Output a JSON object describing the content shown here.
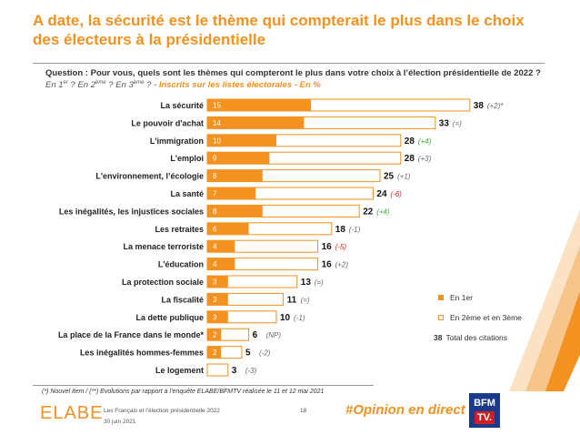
{
  "title": "A date, la sécurité est le thème qui compterait le plus dans le choix des électeurs à la présidentielle",
  "question": "Question : Pour vous, quels sont les thèmes qui compteront le plus dans votre choix à l’élection présidentielle de 2022 ?",
  "subquestion": {
    "ranks_text_1": "En 1",
    "sup1": "er",
    "ranks_text_2": " ? En 2",
    "sup2": "ème",
    "ranks_text_3": " ? En 3",
    "sup3": "ème",
    "ranks_text_4": " ? - ",
    "scope": "Inscrits sur les listes électorales - En %"
  },
  "legend": {
    "first": "En 1er",
    "others": "En 2ème et en 3ème",
    "total_value": "38",
    "total_label": "Total des citations"
  },
  "footnote": "(*) Nouvel item / (**) Evolutions par rapport à l’enquête ELABE/BFMTV réalisée le 11 et 12 mai 2021",
  "footer": {
    "logo": "ELABE",
    "source": "Les Français et l’élection présidentielle 2022",
    "date": "30 juin 2021",
    "page": "18",
    "hashtag": "#Opinion en direct",
    "bfm_line1": "BFM",
    "bfm_line2": "TV."
  },
  "colors": {
    "accent": "#f39220",
    "positive": "#3aa935",
    "negative": "#e2231a",
    "neutral": "#666666"
  },
  "chart_data": {
    "type": "bar",
    "orientation": "horizontal",
    "stacked": true,
    "categories": [
      "La sécurité",
      "Le pouvoir d'achat",
      "L'immigration",
      "L'emploi",
      "L'environnement, l’écologie",
      "La santé",
      "Les inégalités, les injustices sociales",
      "Les retraites",
      "La menace terroriste",
      "L'éducation",
      "La protection sociale",
      "La fiscalité",
      "La dette publique",
      "La place de la France dans le monde*",
      "Les inégalités hommes-femmes",
      "Le logement"
    ],
    "series": [
      {
        "name": "En 1er",
        "values": [
          15,
          14,
          10,
          9,
          8,
          7,
          8,
          6,
          4,
          4,
          3,
          3,
          3,
          2,
          2,
          null
        ]
      },
      {
        "name": "En 2ème et en 3ème",
        "values": [
          23,
          19,
          18,
          19,
          17,
          17,
          14,
          12,
          12,
          12,
          10,
          8,
          7,
          4,
          3,
          3
        ]
      }
    ],
    "totals": [
      38,
      33,
      28,
      28,
      25,
      24,
      22,
      18,
      16,
      16,
      13,
      11,
      10,
      6,
      5,
      3
    ],
    "evolutions": [
      "(+2)*",
      "(=)",
      "(+4)",
      "(+3)",
      "(+1)",
      "(-6)",
      "(+4)",
      "(-1)",
      "(-5)",
      "(+2)",
      "(=)",
      "(=)",
      "(-1)",
      "(NP)",
      "(-2)",
      "(-3)"
    ],
    "evolution_colors": [
      "neutral",
      "neutral",
      "positive",
      "neutral",
      "neutral",
      "negative",
      "positive",
      "neutral",
      "negative",
      "neutral",
      "neutral",
      "neutral",
      "neutral",
      "neutral",
      "neutral",
      "neutral"
    ],
    "legend_position": "bottom-right",
    "grid": false
  }
}
